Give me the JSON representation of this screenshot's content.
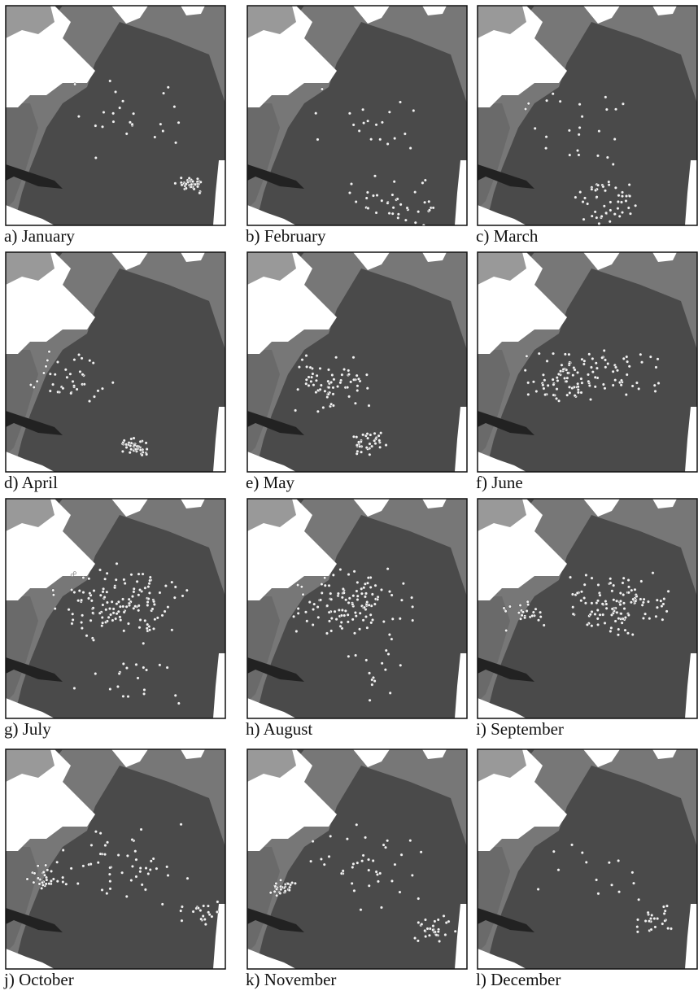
{
  "panels": [
    {
      "label": "a) January"
    },
    {
      "label": "b) February"
    },
    {
      "label": "c) March"
    },
    {
      "label": "d) April"
    },
    {
      "label": "e) May"
    },
    {
      "label": "f) June"
    },
    {
      "label": "g) July"
    },
    {
      "label": "h) August"
    },
    {
      "label": "i) September"
    },
    {
      "label": "j) October"
    },
    {
      "label": "k) November"
    },
    {
      "label": "l) December"
    }
  ]
}
